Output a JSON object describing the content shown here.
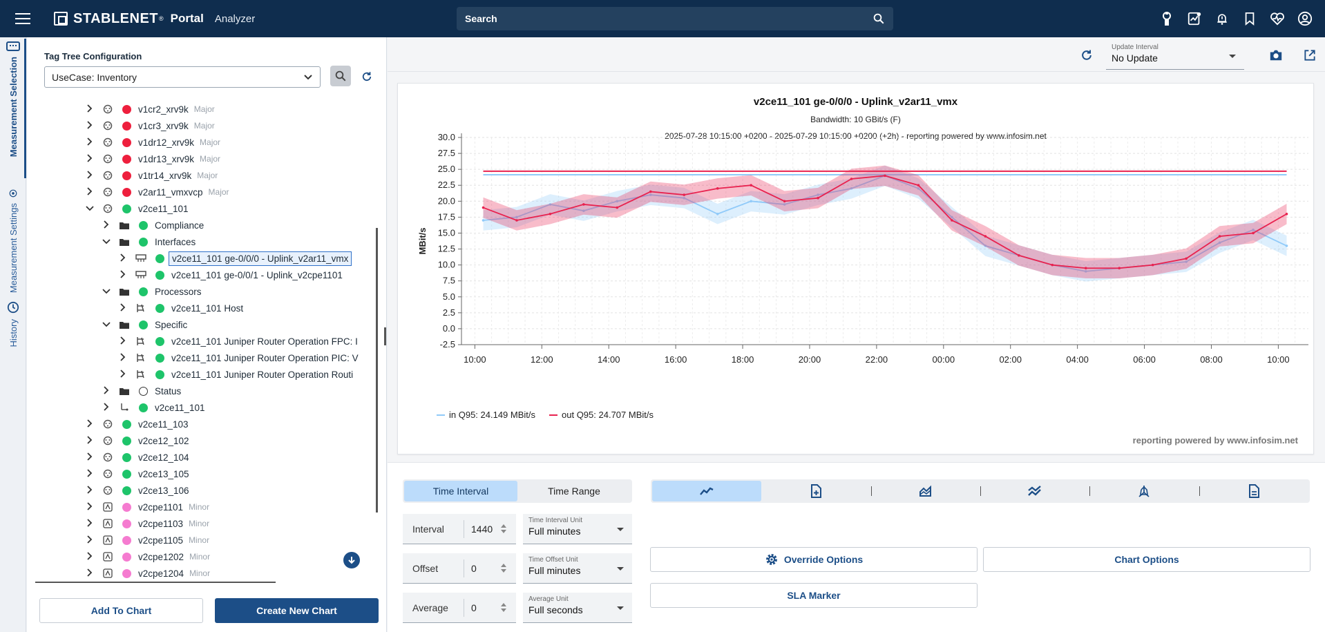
{
  "app": {
    "brand": "STABLENET",
    "brand_mark": "®",
    "portal": "Portal",
    "module": "Analyzer",
    "search_placeholder": "Search",
    "top_icons": [
      "robot-icon",
      "report-icon",
      "alarm-icon",
      "bookmark-icon",
      "health-icon",
      "user-icon"
    ]
  },
  "vertical_tabs": [
    {
      "label": "Measurement Selection",
      "icon": "dashboard-icon",
      "active": true
    },
    {
      "label": "Measurement Settings",
      "icon": "gauge-icon",
      "active": false
    },
    {
      "label": "History",
      "icon": "history-icon",
      "active": false
    }
  ],
  "sidebar": {
    "tag_tree_label": "Tag Tree Configuration",
    "tag_tree_value": "UseCase: Inventory",
    "tree": [
      {
        "level": 0,
        "expand": "right",
        "icon": "device",
        "status": "red",
        "label": "v1cr2_xrv9k",
        "sev": "Major"
      },
      {
        "level": 0,
        "expand": "right",
        "icon": "device",
        "status": "red",
        "label": "v1cr3_xrv9k",
        "sev": "Major"
      },
      {
        "level": 0,
        "expand": "right",
        "icon": "device",
        "status": "red",
        "label": "v1dr12_xrv9k",
        "sev": "Major"
      },
      {
        "level": 0,
        "expand": "right",
        "icon": "device",
        "status": "red",
        "label": "v1dr13_xrv9k",
        "sev": "Major"
      },
      {
        "level": 0,
        "expand": "right",
        "icon": "device",
        "status": "red",
        "label": "v1tr14_xrv9k",
        "sev": "Major"
      },
      {
        "level": 0,
        "expand": "right",
        "icon": "device",
        "status": "red",
        "label": "v2ar11_vmxvcp",
        "sev": "Major"
      },
      {
        "level": 0,
        "expand": "down",
        "icon": "device",
        "status": "green",
        "label": "v2ce11_101",
        "sev": ""
      },
      {
        "level": 1,
        "expand": "right",
        "icon": "folder",
        "status": "green",
        "label": "Compliance",
        "sev": ""
      },
      {
        "level": 1,
        "expand": "down",
        "icon": "folder",
        "status": "green",
        "label": "Interfaces",
        "sev": ""
      },
      {
        "level": 2,
        "expand": "right",
        "icon": "port",
        "status": "green",
        "label": "v2ce11_101 ge-0/0/0 - Uplink_v2ar11_vmx",
        "sev": "",
        "selected": true
      },
      {
        "level": 2,
        "expand": "right",
        "icon": "port",
        "status": "green",
        "label": "v2ce11_101 ge-0/0/1 - Uplink_v2cpe1101",
        "sev": ""
      },
      {
        "level": 1,
        "expand": "down",
        "icon": "folder",
        "status": "green",
        "label": "Processors",
        "sev": ""
      },
      {
        "level": 2,
        "expand": "right",
        "icon": "module",
        "status": "green",
        "label": "v2ce11_101 Host",
        "sev": ""
      },
      {
        "level": 1,
        "expand": "down",
        "icon": "folder",
        "status": "green",
        "label": "Specific",
        "sev": ""
      },
      {
        "level": 2,
        "expand": "right",
        "icon": "module",
        "status": "green",
        "label": "v2ce11_101 Juniper Router Operation FPC: I",
        "sev": ""
      },
      {
        "level": 2,
        "expand": "right",
        "icon": "module",
        "status": "green",
        "label": "v2ce11_101 Juniper Router Operation PIC: V",
        "sev": ""
      },
      {
        "level": 2,
        "expand": "right",
        "icon": "module",
        "status": "green",
        "label": "v2ce11_101 Juniper Router Operation Routi",
        "sev": ""
      },
      {
        "level": 1,
        "expand": "right",
        "icon": "folder",
        "status": "none",
        "label": "Status",
        "sev": ""
      },
      {
        "level": 1,
        "expand": "right",
        "icon": "link",
        "status": "green",
        "label": "v2ce11_101",
        "sev": ""
      },
      {
        "level": 0,
        "expand": "right",
        "icon": "device",
        "status": "green",
        "label": "v2ce11_103",
        "sev": ""
      },
      {
        "level": 0,
        "expand": "right",
        "icon": "device",
        "status": "green",
        "label": "v2ce12_102",
        "sev": ""
      },
      {
        "level": 0,
        "expand": "right",
        "icon": "device",
        "status": "green",
        "label": "v2ce12_104",
        "sev": ""
      },
      {
        "level": 0,
        "expand": "right",
        "icon": "device",
        "status": "green",
        "label": "v2ce13_105",
        "sev": ""
      },
      {
        "level": 0,
        "expand": "right",
        "icon": "device",
        "status": "green",
        "label": "v2ce13_106",
        "sev": ""
      },
      {
        "level": 0,
        "expand": "right",
        "icon": "cpe",
        "status": "pink",
        "label": "v2cpe1101",
        "sev": "Minor"
      },
      {
        "level": 0,
        "expand": "right",
        "icon": "cpe",
        "status": "pink",
        "label": "v2cpe1103",
        "sev": "Minor"
      },
      {
        "level": 0,
        "expand": "right",
        "icon": "cpe",
        "status": "pink",
        "label": "v2cpe1105",
        "sev": "Minor"
      },
      {
        "level": 0,
        "expand": "right",
        "icon": "cpe",
        "status": "pink",
        "label": "v2cpe1202",
        "sev": "Minor"
      },
      {
        "level": 0,
        "expand": "right",
        "icon": "cpe",
        "status": "pink",
        "label": "v2cpe1204",
        "sev": "Minor"
      }
    ],
    "add_to_chart": "Add To Chart",
    "create_new_chart": "Create New Chart"
  },
  "header": {
    "update_interval_label": "Update Interval",
    "update_interval_value": "No Update"
  },
  "chart_data": {
    "type": "line",
    "title": "v2ce11_101 ge-0/0/0 - Uplink_v2ar11_vmx",
    "subtitle": "Bandwidth: 10 GBit/s (F)",
    "time_range": "2025-07-28 10:15:00 +0200 - 2025-07-29 10:15:00 +0200 (+2h) - reporting powered by www.infosim.net",
    "ylabel": "MBit/s",
    "ylim": [
      -2.5,
      30.0
    ],
    "yticks": [
      "30.0",
      "27.5",
      "25.0",
      "22.5",
      "20.0",
      "17.5",
      "15.0",
      "12.5",
      "10.0",
      "7.5",
      "5.0",
      "2.5",
      "0.0",
      "-2.5"
    ],
    "x_ticks": [
      "10:00",
      "12:00",
      "14:00",
      "16:00",
      "18:00",
      "20:00",
      "22:00",
      "00:00",
      "02:00",
      "04:00",
      "06:00",
      "08:00",
      "10:00"
    ],
    "x_hours": [
      10,
      12,
      14,
      16,
      18,
      20,
      22,
      24,
      26,
      28,
      30,
      32,
      34
    ],
    "xlim_hours": [
      9.6,
      34.9
    ],
    "grid": true,
    "legend_position": "bottom-left",
    "series": [
      {
        "name": "in Q95: 24.149 MBit/s",
        "color": "#90caf9",
        "q95": 24.149,
        "x_hours": [
          10.25,
          11.25,
          12.25,
          13.25,
          14.25,
          15.25,
          16.25,
          17.25,
          18.25,
          19.25,
          20.25,
          21.25,
          22.25,
          23.25,
          24.25,
          25.25,
          26.25,
          27.25,
          28.25,
          29.25,
          30.25,
          31.25,
          32.25,
          33.25,
          34.25
        ],
        "values": [
          17.0,
          17.5,
          19.5,
          18.5,
          20.0,
          21.0,
          20.5,
          18.0,
          20.0,
          19.5,
          21.0,
          22.0,
          24.0,
          22.0,
          17.5,
          13.0,
          11.5,
          10.0,
          9.0,
          9.5,
          10.0,
          10.5,
          13.5,
          15.5,
          13.0
        ]
      },
      {
        "name": "out Q95: 24.707 MBit/s",
        "color": "#e8224f",
        "q95": 24.707,
        "x_hours": [
          10.25,
          11.25,
          12.25,
          13.25,
          14.25,
          15.25,
          16.25,
          17.25,
          18.25,
          19.25,
          20.25,
          21.25,
          22.25,
          23.25,
          24.25,
          25.25,
          26.25,
          27.25,
          28.25,
          29.25,
          30.25,
          31.25,
          32.25,
          33.25,
          34.25
        ],
        "values": [
          19.0,
          17.0,
          18.0,
          19.5,
          19.0,
          21.5,
          21.0,
          22.0,
          22.5,
          20.0,
          20.5,
          23.5,
          24.0,
          22.5,
          17.0,
          14.5,
          11.5,
          10.0,
          9.5,
          9.5,
          10.0,
          11.0,
          14.5,
          15.0,
          18.0
        ]
      }
    ],
    "credit": "reporting powered by www.infosim.net"
  },
  "controls": {
    "time_interval_tab": "Time Interval",
    "time_range_tab": "Time Range",
    "interval_label": "Interval",
    "interval_value": "1440",
    "interval_unit_label": "Time Interval Unit",
    "interval_unit_value": "Full minutes",
    "offset_label": "Offset",
    "offset_value": "0",
    "offset_unit_label": "Time Offset Unit",
    "offset_unit_value": "Full minutes",
    "average_label": "Average",
    "average_value": "0",
    "average_unit_label": "Average Unit",
    "average_unit_value": "Full seconds",
    "chart_type_icons": [
      "line-chart-icon",
      "add-report-icon",
      "area-chart-icon",
      "stacked-chart-icon",
      "radar-chart-icon",
      "document-icon"
    ],
    "override_options": "Override Options",
    "chart_options": "Chart Options",
    "sla_marker": "SLA Marker"
  }
}
